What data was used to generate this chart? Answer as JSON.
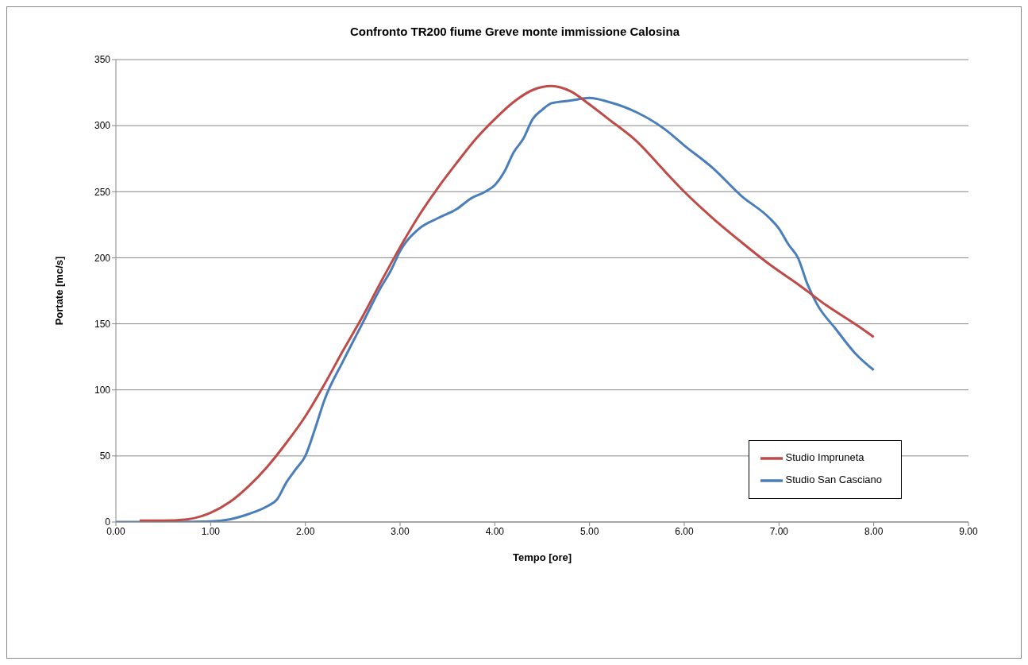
{
  "chart_data": {
    "type": "line",
    "title": "Confronto TR200 fiume Greve monte immissione Calosina",
    "xlabel": "Tempo [ore]",
    "ylabel": "Portate [mc/s]",
    "xlim": [
      0,
      9
    ],
    "xticks": [
      {
        "value": 0,
        "label": "0.00"
      },
      {
        "value": 1,
        "label": "1.00"
      },
      {
        "value": 2,
        "label": "2.00"
      },
      {
        "value": 3,
        "label": "3.00"
      },
      {
        "value": 4,
        "label": "4.00"
      },
      {
        "value": 5,
        "label": "5.00"
      },
      {
        "value": 6,
        "label": "6.00"
      },
      {
        "value": 7,
        "label": "7.00"
      },
      {
        "value": 8,
        "label": "8.00"
      },
      {
        "value": 9,
        "label": "9.00"
      }
    ],
    "ylim": [
      0,
      350
    ],
    "yticks": [
      0,
      50,
      100,
      150,
      200,
      250,
      300,
      350
    ],
    "grid": "y",
    "legend": "bottom right",
    "marker": "none",
    "line_style": "solid",
    "series": [
      {
        "name": "Studio San Casciano",
        "color": "#4a7ebb",
        "x": [
          0,
          0.5,
          1.0,
          1.2,
          1.4,
          1.6,
          1.7,
          1.8,
          1.9,
          2.0,
          2.1,
          2.2,
          2.4,
          2.6,
          2.8,
          2.9,
          3.0,
          3.2,
          3.4,
          3.6,
          3.75,
          3.9,
          4.0,
          4.1,
          4.2,
          4.3,
          4.4,
          4.5,
          4.6,
          4.8,
          5.0,
          5.2,
          5.5,
          5.8,
          6.0,
          6.3,
          6.6,
          6.9,
          7.0,
          7.1,
          7.2,
          7.3,
          7.4,
          7.6,
          7.8,
          8.0
        ],
        "values": [
          0,
          0,
          0.5,
          2,
          6,
          12,
          17,
          30,
          40,
          50,
          70,
          92,
          122,
          150,
          178,
          190,
          205,
          222,
          230,
          237,
          245,
          250,
          255,
          265,
          280,
          290,
          305,
          312,
          317,
          319,
          321,
          318,
          310,
          297,
          285,
          268,
          247,
          230,
          222,
          210,
          200,
          180,
          165,
          146,
          128,
          115
        ]
      },
      {
        "name": "Studio Impruneta",
        "color": "#be4b48",
        "x": [
          0.25,
          0.5,
          0.75,
          1.0,
          1.2,
          1.4,
          1.6,
          1.8,
          2.0,
          2.2,
          2.4,
          2.6,
          2.8,
          3.0,
          3.2,
          3.4,
          3.6,
          3.8,
          4.0,
          4.2,
          4.4,
          4.6,
          4.8,
          5.0,
          5.2,
          5.5,
          5.8,
          6.0,
          6.3,
          6.6,
          6.9,
          7.2,
          7.5,
          7.8,
          8.0
        ],
        "values": [
          1,
          1,
          2,
          7,
          15,
          27,
          42,
          60,
          80,
          104,
          130,
          155,
          182,
          208,
          232,
          253,
          272,
          290,
          305,
          318,
          327,
          330,
          326,
          316,
          305,
          288,
          265,
          250,
          230,
          212,
          195,
          180,
          164,
          150,
          140
        ]
      }
    ]
  }
}
